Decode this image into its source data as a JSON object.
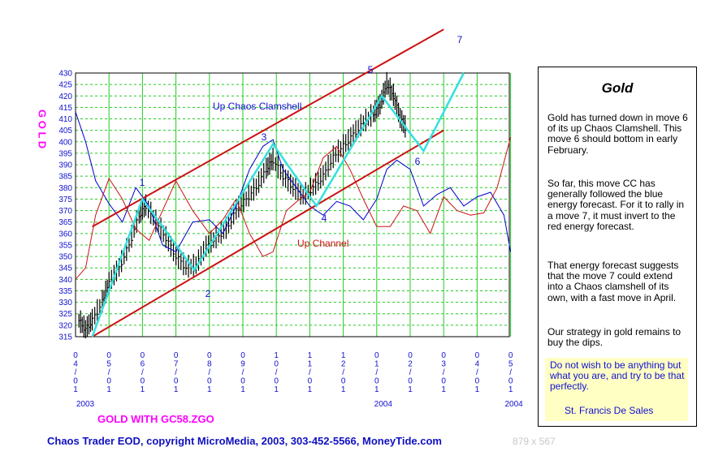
{
  "chart_data": {
    "type": "line",
    "symbol_label": "G O L D",
    "subtitle": "GOLD WITH GC58.ZGO",
    "ylim": [
      315,
      430
    ],
    "y_ticks": [
      315,
      320,
      325,
      330,
      335,
      340,
      345,
      350,
      355,
      360,
      365,
      370,
      375,
      380,
      385,
      390,
      395,
      400,
      405,
      410,
      415,
      420,
      425,
      430
    ],
    "x_ticks": [
      "04/01",
      "05/01",
      "06/01",
      "07/01",
      "08/01",
      "09/01",
      "10/01",
      "11/01",
      "12/01",
      "01/01",
      "02/01",
      "03/01",
      "04/01",
      "05/01"
    ],
    "year_labels": [
      "2003",
      "2004",
      "2004"
    ],
    "grid": true,
    "annotations": {
      "clamshell": "Up Chaos Clamshell",
      "channel": "Up Channel"
    },
    "wave_labels": [
      "1",
      "2",
      "3",
      "4",
      "5",
      "6",
      "7"
    ],
    "clamshell_path": {
      "color": "#33e0e0",
      "points": [
        [
          0.5,
          315
        ],
        [
          2,
          375
        ],
        [
          3.55,
          344
        ],
        [
          5.9,
          399
        ],
        [
          7.2,
          372
        ],
        [
          9.15,
          420
        ],
        [
          10.4,
          396
        ],
        [
          11.6,
          430
        ]
      ]
    },
    "channel_lines": {
      "color": "#cc1111",
      "upper": [
        [
          0.5,
          363
        ],
        [
          11,
          449
        ]
      ],
      "lower": [
        [
          0.5,
          315
        ],
        [
          11,
          405
        ]
      ]
    },
    "price_series": [
      {
        "x": 0.1,
        "v": 322
      },
      {
        "x": 0.3,
        "v": 318
      },
      {
        "x": 0.5,
        "v": 322
      },
      {
        "x": 0.8,
        "v": 330
      },
      {
        "x": 1.0,
        "v": 338
      },
      {
        "x": 1.3,
        "v": 345
      },
      {
        "x": 1.6,
        "v": 355
      },
      {
        "x": 1.9,
        "v": 368
      },
      {
        "x": 2.1,
        "v": 372
      },
      {
        "x": 2.4,
        "v": 365
      },
      {
        "x": 2.7,
        "v": 358
      },
      {
        "x": 3.0,
        "v": 350
      },
      {
        "x": 3.3,
        "v": 345
      },
      {
        "x": 3.6,
        "v": 346
      },
      {
        "x": 3.9,
        "v": 354
      },
      {
        "x": 4.2,
        "v": 358
      },
      {
        "x": 4.5,
        "v": 362
      },
      {
        "x": 4.8,
        "v": 370
      },
      {
        "x": 5.1,
        "v": 375
      },
      {
        "x": 5.4,
        "v": 380
      },
      {
        "x": 5.7,
        "v": 388
      },
      {
        "x": 5.9,
        "v": 392
      },
      {
        "x": 6.2,
        "v": 385
      },
      {
        "x": 6.5,
        "v": 380
      },
      {
        "x": 6.8,
        "v": 376
      },
      {
        "x": 7.1,
        "v": 380
      },
      {
        "x": 7.4,
        "v": 385
      },
      {
        "x": 7.7,
        "v": 393
      },
      {
        "x": 8.0,
        "v": 398
      },
      {
        "x": 8.3,
        "v": 403
      },
      {
        "x": 8.6,
        "v": 408
      },
      {
        "x": 8.9,
        "v": 412
      },
      {
        "x": 9.1,
        "v": 416
      },
      {
        "x": 9.3,
        "v": 425
      },
      {
        "x": 9.5,
        "v": 420
      },
      {
        "x": 9.7,
        "v": 410
      },
      {
        "x": 9.9,
        "v": 405
      }
    ],
    "energy_series": [
      {
        "name": "blue energy forecast",
        "color": "#0000cc",
        "points": [
          [
            0,
            413
          ],
          [
            0.3,
            400
          ],
          [
            0.6,
            383
          ],
          [
            1,
            373
          ],
          [
            1.4,
            365
          ],
          [
            1.8,
            380
          ],
          [
            2.2,
            372
          ],
          [
            2.6,
            355
          ],
          [
            3,
            352
          ],
          [
            3.5,
            365
          ],
          [
            4,
            366
          ],
          [
            4.4,
            360
          ],
          [
            4.8,
            372
          ],
          [
            5.2,
            388
          ],
          [
            5.6,
            398
          ],
          [
            5.9,
            401
          ],
          [
            6.2,
            388
          ],
          [
            6.6,
            380
          ],
          [
            7,
            372
          ],
          [
            7.4,
            368
          ],
          [
            7.8,
            374
          ],
          [
            8.2,
            372
          ],
          [
            8.6,
            366
          ],
          [
            9,
            375
          ],
          [
            9.3,
            388
          ],
          [
            9.6,
            392
          ],
          [
            10,
            388
          ],
          [
            10.4,
            372
          ],
          [
            10.8,
            377
          ],
          [
            11.2,
            380
          ],
          [
            11.6,
            372
          ],
          [
            12,
            376
          ],
          [
            12.4,
            378
          ],
          [
            12.8,
            368
          ],
          [
            13,
            352
          ]
        ]
      },
      {
        "name": "red energy forecast",
        "color": "#cc1111",
        "points": [
          [
            0,
            340
          ],
          [
            0.3,
            345
          ],
          [
            0.6,
            368
          ],
          [
            1,
            384
          ],
          [
            1.4,
            375
          ],
          [
            1.8,
            362
          ],
          [
            2.2,
            357
          ],
          [
            2.6,
            370
          ],
          [
            3,
            383
          ],
          [
            3.5,
            370
          ],
          [
            4,
            360
          ],
          [
            4.4,
            366
          ],
          [
            4.8,
            375
          ],
          [
            5.2,
            360
          ],
          [
            5.6,
            350
          ],
          [
            5.9,
            352
          ],
          [
            6.3,
            370
          ],
          [
            6.7,
            375
          ],
          [
            7,
            378
          ],
          [
            7.4,
            393
          ],
          [
            7.8,
            398
          ],
          [
            8.2,
            388
          ],
          [
            8.6,
            375
          ],
          [
            9,
            363
          ],
          [
            9.4,
            363
          ],
          [
            9.8,
            372
          ],
          [
            10.2,
            370
          ],
          [
            10.6,
            360
          ],
          [
            11,
            376
          ],
          [
            11.4,
            370
          ],
          [
            11.8,
            368
          ],
          [
            12.2,
            369
          ],
          [
            12.6,
            380
          ],
          [
            13,
            402
          ]
        ]
      }
    ]
  },
  "sidebar": {
    "title": "Gold",
    "paragraphs": [
      "Gold has turned down in move 6 of its up Chaos Clamshell. This move 6 should bottom in early February.",
      "So far, this move CC has generally followed the blue energy forecast. For it to rally in a move 7, it must invert to the red energy forecast.",
      "That energy forecast suggests that the move 7 could extend into a Chaos clamshell of its own, with a fast move in April.",
      "Our strategy in gold remains to buy the dips."
    ],
    "quote": "Do not wish to be anything but what you are, and try to be that perfectly.",
    "quote_author": "St. Francis De Sales"
  },
  "footer": "Chaos Trader EOD, copyright MicroMedia, 2003, 303-452-5566, MoneyTide.com",
  "image_size": "879 x 567"
}
